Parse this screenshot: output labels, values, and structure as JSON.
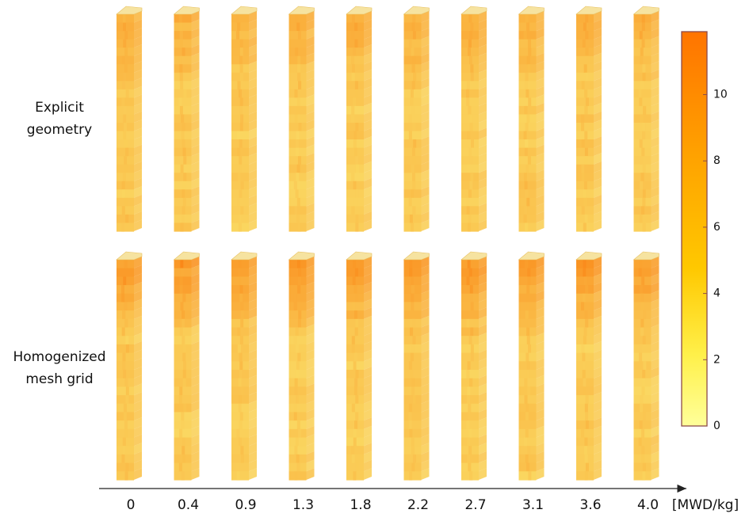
{
  "row_labels": [
    [
      "Explicit",
      "geometry"
    ],
    [
      "Homogenized",
      "mesh grid"
    ]
  ],
  "x_axis": {
    "labels": [
      "0",
      "0.4",
      "0.9",
      "1.3",
      "1.8",
      "2.2",
      "2.7",
      "3.1",
      "3.6",
      "4.0"
    ],
    "unit": "[MWD/kg]"
  },
  "colorbar": {
    "lim": [
      0,
      11.9
    ],
    "ticks": [
      0,
      2,
      4,
      6,
      8,
      10
    ]
  }
}
